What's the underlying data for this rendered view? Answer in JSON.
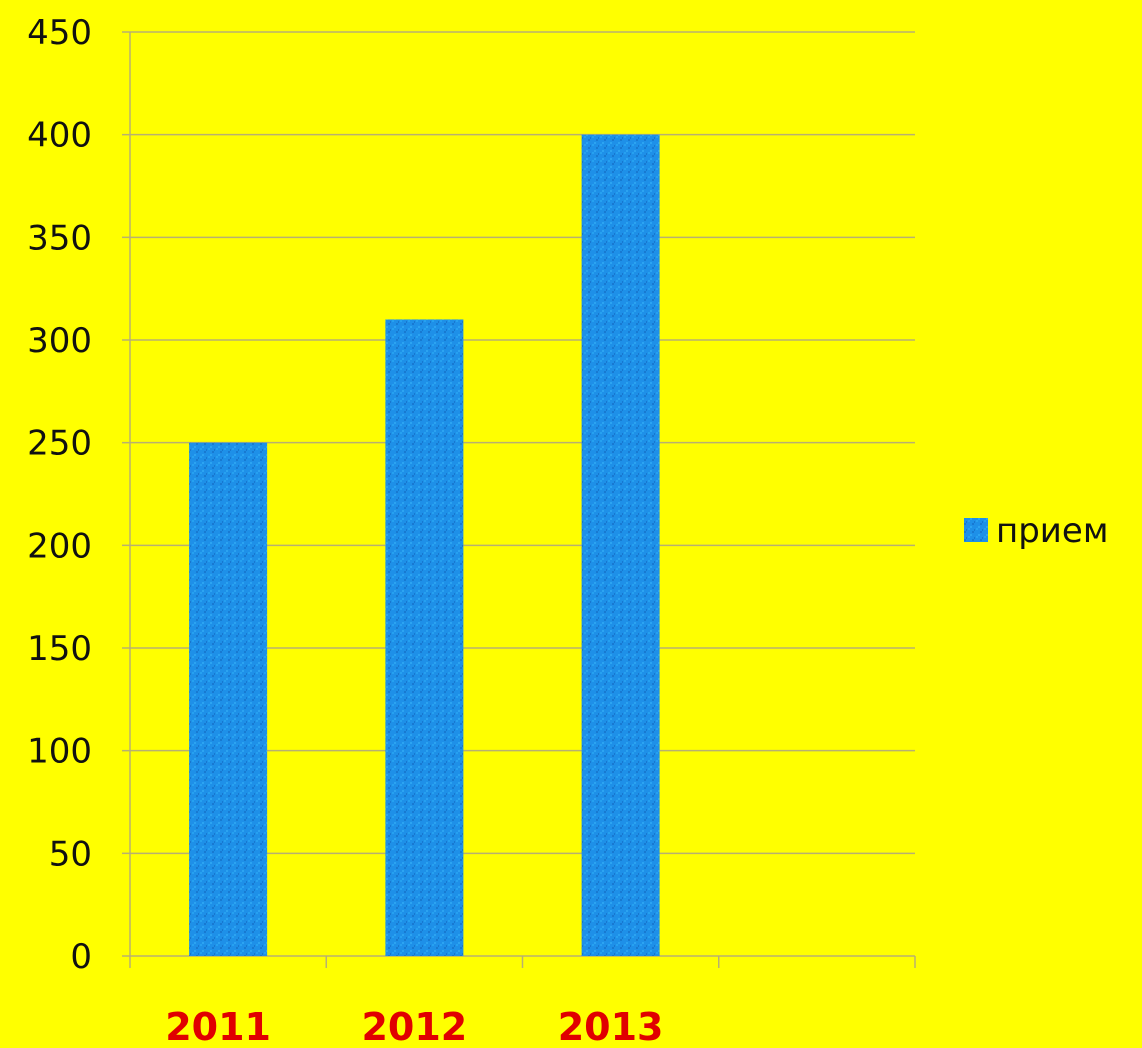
{
  "chart_data": {
    "type": "bar",
    "categories": [
      "2011",
      "2012",
      "2013",
      ""
    ],
    "series": [
      {
        "name": "прием",
        "values": [
          250,
          310,
          400,
          null
        ],
        "color": "#1e90e8"
      }
    ],
    "y_ticks": [
      0,
      50,
      100,
      150,
      200,
      250,
      300,
      350,
      400,
      450
    ],
    "ylim": [
      0,
      450
    ],
    "grid": true,
    "legend_position": "right",
    "colors": {
      "background": "#ffff00",
      "bar": "#1e90e8",
      "gridline": "#b8b070",
      "x_label": "#e00000",
      "y_label": "#111111"
    }
  }
}
